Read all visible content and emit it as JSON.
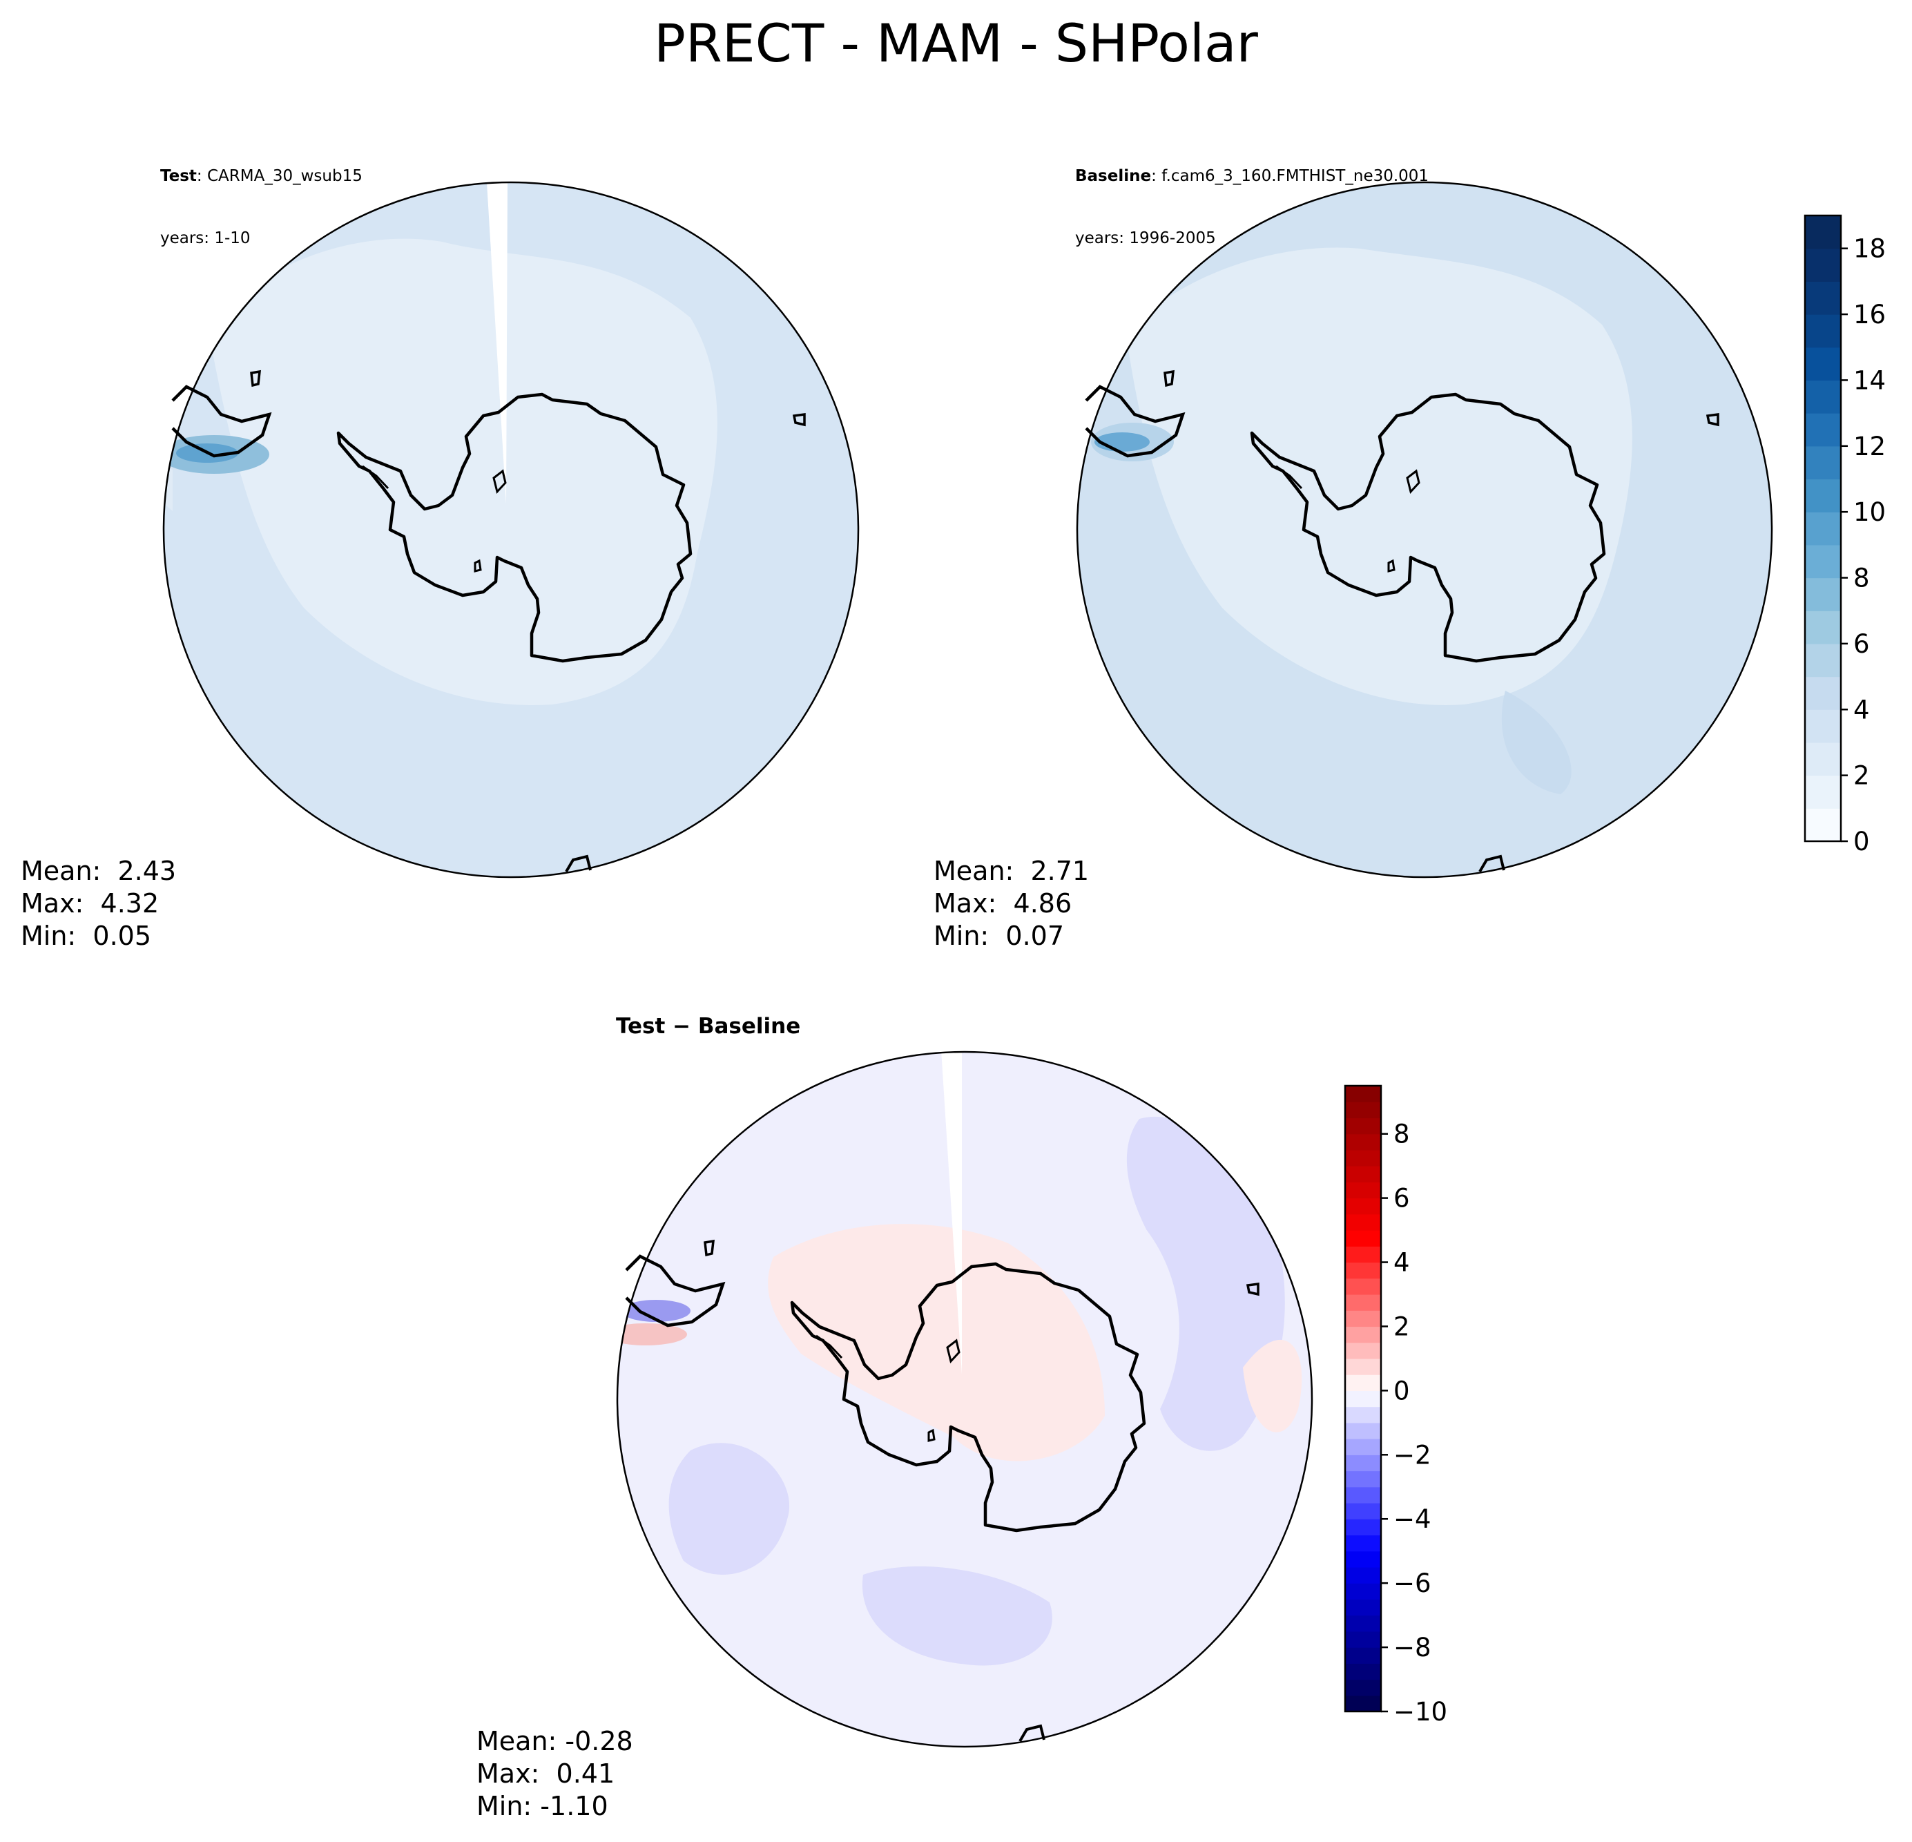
{
  "figure": {
    "title": "PRECT - MAM - SHPolar"
  },
  "panels": [
    {
      "id": "test",
      "title_bold": "Test",
      "title_rest": ": CARMA_30_wsub15",
      "subtitle": "years: 1-10",
      "stats": {
        "mean": "Mean:  2.43",
        "max": "Max:  4.32",
        "min": "Min:  0.05"
      }
    },
    {
      "id": "baseline",
      "title_bold": "Baseline",
      "title_rest": ": f.cam6_3_160.FMTHIST_ne30.001",
      "subtitle": "years: 1996-2005",
      "stats": {
        "mean": "Mean:  2.71",
        "max": "Max:  4.86",
        "min": "Min:  0.07"
      }
    },
    {
      "id": "difference",
      "title": "Test − Baseline",
      "stats": {
        "mean": "Mean: -0.28",
        "max": "Max:  0.41",
        "min": "Min: -1.10"
      }
    }
  ],
  "colorbars": {
    "field": {
      "colormap": "Blues",
      "range": [
        0,
        19
      ],
      "levels": 19,
      "ticks": [
        "0",
        "2",
        "4",
        "6",
        "8",
        "10",
        "12",
        "14",
        "16",
        "18"
      ],
      "tick_values": [
        0,
        2,
        4,
        6,
        8,
        10,
        12,
        14,
        16,
        18
      ],
      "colors": [
        "#f7fbff",
        "#eaf3fb",
        "#deebf7",
        "#d2e3f3",
        "#c6dbef",
        "#b3d3e8",
        "#9ecae1",
        "#84bcdb",
        "#6baed6",
        "#58a1cf",
        "#4292c6",
        "#3282be",
        "#2171b5",
        "#1461a8",
        "#08519c",
        "#08458a",
        "#083a7a",
        "#08306b",
        "#082a5e"
      ]
    },
    "diff": {
      "colormap": "seismic",
      "range": [
        -10,
        9.5
      ],
      "ticks": [
        "−10",
        "−8",
        "−6",
        "−4",
        "−2",
        "0",
        "2",
        "4",
        "6",
        "8"
      ],
      "tick_values": [
        -10,
        -8,
        -6,
        -4,
        -2,
        0,
        2,
        4,
        6,
        8
      ],
      "stops": [
        "#00004c",
        "#0000ff",
        "#ffffff",
        "#ff0000",
        "#800000"
      ]
    }
  },
  "colors": {
    "ocean_test": "#d6e5f4",
    "ocean_baseline": "#d1e2f2",
    "continent": "#eef5fc",
    "diff_ocean": "#dcdcfc",
    "diff_background": "#efeffd",
    "diff_positive": "#fde9e9"
  }
}
